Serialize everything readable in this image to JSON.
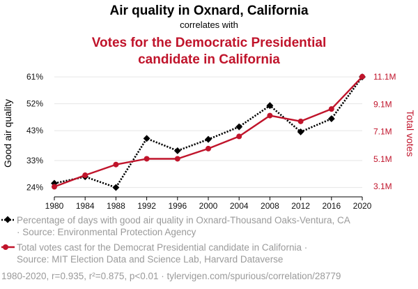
{
  "header": {
    "title_line": "Air quality in Oxnard, California",
    "subtitle": "correlates with",
    "title2_line1": "Votes for the Democratic Presidential",
    "title2_line2": "candidate in California"
  },
  "legend": {
    "series1_line1": "Percentage of days with good air quality in Oxnard-Thousand Oaks-Ventura, CA",
    "series1_line2": "· Source: Environmental Protection Agency",
    "series2_line1": "Total votes cast for the Democrat Presidential candidate in California ·",
    "series2_line2": "Source: MIT Election Data and Science Lab, Harvard Dataverse"
  },
  "footer": "1980-2020, r=0.935, r²=0.875, p<0.01 · tylervigen.com/spurious/correlation/28779",
  "colors": {
    "series1": "#000000",
    "series2": "#c0142b",
    "footer_text": "#9a9a9a"
  },
  "chart_data": {
    "type": "line",
    "x": [
      1980,
      1984,
      1988,
      1992,
      1996,
      2000,
      2004,
      2008,
      2012,
      2016,
      2020
    ],
    "xticks": [
      "1980",
      "1984",
      "1988",
      "1992",
      "1996",
      "2000",
      "2004",
      "2008",
      "2012",
      "2016",
      "2020"
    ],
    "ylabel_left": "Good air quality",
    "ylabel_right": "Total votes",
    "yticks_left": [
      {
        "value": 24,
        "label": "24%"
      },
      {
        "value": 33,
        "label": "33%"
      },
      {
        "value": 43,
        "label": "43%"
      },
      {
        "value": 52,
        "label": "52%"
      },
      {
        "value": 61,
        "label": "61%"
      }
    ],
    "yticks_right": [
      {
        "value": 3.1,
        "label": "3.1M"
      },
      {
        "value": 5.1,
        "label": "5.1M"
      },
      {
        "value": 7.1,
        "label": "7.1M"
      },
      {
        "value": 9.1,
        "label": "9.1M"
      },
      {
        "value": 11.1,
        "label": "11.1M"
      }
    ],
    "ylim_left": [
      22.5,
      61.5
    ],
    "ylim_right": [
      2.7,
      11.2
    ],
    "grid": true,
    "series": [
      {
        "name": "Percentage of days with good air quality in Oxnard-Thousand Oaks-Ventura, CA",
        "axis": "left",
        "style": "dotted",
        "marker": "diamond",
        "values": [
          25.4,
          27.6,
          24.0,
          40.4,
          36.3,
          40.1,
          44.3,
          51.4,
          42.6,
          47.0,
          61.0
        ]
      },
      {
        "name": "Total votes cast for the Democrat Presidential candidate in California",
        "axis": "right",
        "style": "solid",
        "marker": "circle",
        "values": [
          3.08,
          3.92,
          4.7,
          5.12,
          5.12,
          5.86,
          6.75,
          8.27,
          7.85,
          8.75,
          11.11
        ]
      }
    ]
  }
}
